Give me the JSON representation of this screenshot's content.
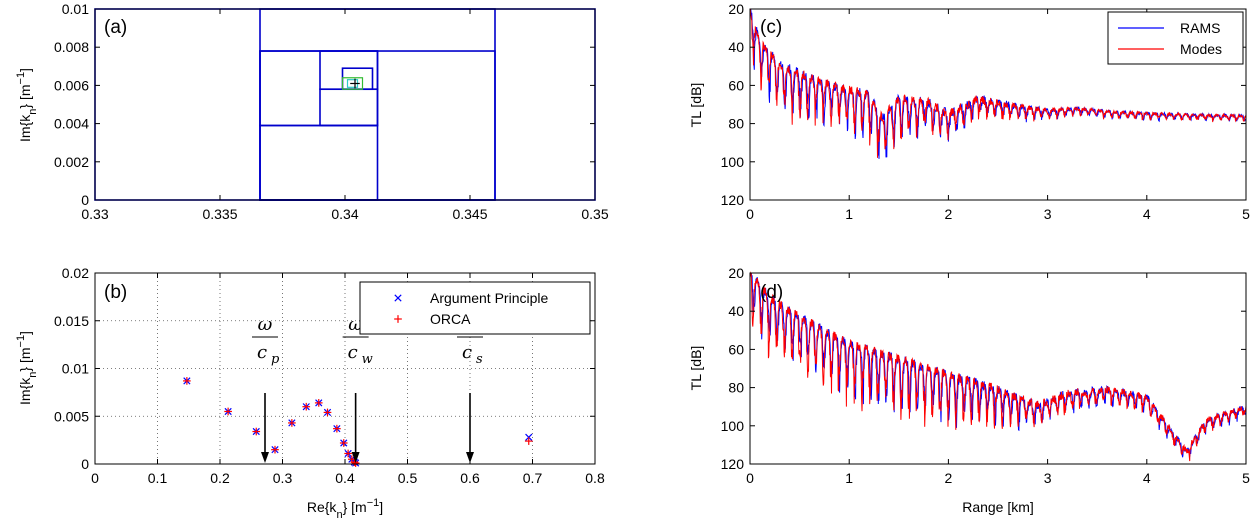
{
  "chart_data": [
    {
      "id": "a",
      "type": "scatter",
      "panel_label": "(a)",
      "xlabel": "",
      "ylabel": "Im{k_n} [m^-1]",
      "xlim": [
        0.33,
        0.35
      ],
      "ylim": [
        0,
        0.01
      ],
      "xticks": [
        "0.33",
        "0.335",
        "0.34",
        "0.345",
        "0.35"
      ],
      "yticks": [
        "0",
        "0.002",
        "0.004",
        "0.006",
        "0.008",
        "0.01"
      ],
      "grid": false,
      "box_color": "#0000cc",
      "rectangles": [
        {
          "x0": 0.33,
          "x1": 0.35,
          "y0": 0.0,
          "y1": 0.01
        },
        {
          "x0": 0.3366,
          "x1": 0.346,
          "y0": 0.0,
          "y1": 0.01
        },
        {
          "x0": 0.3366,
          "x1": 0.346,
          "y0": 0.0,
          "y1": 0.0078
        },
        {
          "x0": 0.3366,
          "x1": 0.3413,
          "y0": 0.0,
          "y1": 0.0039
        },
        {
          "x0": 0.3366,
          "x1": 0.3413,
          "y0": 0.0039,
          "y1": 0.0078
        },
        {
          "x0": 0.339,
          "x1": 0.3413,
          "y0": 0.0058,
          "y1": 0.0078
        },
        {
          "x0": 0.339,
          "x1": 0.3413,
          "y0": 0.0039,
          "y1": 0.0058
        },
        {
          "x0": 0.3399,
          "x1": 0.3411,
          "y0": 0.0058,
          "y1": 0.0069
        }
      ],
      "small_boxes": [
        {
          "x0": 0.3399,
          "x1": 0.3407,
          "y0": 0.0058,
          "y1": 0.0064,
          "color": "#33bb33"
        },
        {
          "x0": 0.3401,
          "x1": 0.3405,
          "y0": 0.0059,
          "y1": 0.0063,
          "color": "#2ec9c9"
        }
      ],
      "marker": {
        "x": 0.3404,
        "y": 0.0061,
        "symbol": "+",
        "color": "#000000"
      }
    },
    {
      "id": "b",
      "type": "scatter",
      "panel_label": "(b)",
      "xlabel": "Re{k_n} [m^-1]",
      "ylabel": "Im{k_n} [m^-1]",
      "xlim": [
        0,
        0.8
      ],
      "ylim": [
        0,
        0.02
      ],
      "xticks": [
        "0",
        "0.1",
        "0.2",
        "0.3",
        "0.4",
        "0.5",
        "0.6",
        "0.7",
        "0.8"
      ],
      "yticks": [
        "0",
        "0.005",
        "0.01",
        "0.015",
        "0.02"
      ],
      "grid": true,
      "legend": {
        "position": "top-right",
        "entries": [
          {
            "name": "Argument Principle",
            "symbol": "x",
            "color": "#0000ff"
          },
          {
            "name": "ORCA",
            "symbol": "+",
            "color": "#ff0000"
          }
        ]
      },
      "series": [
        {
          "name": "Argument Principle",
          "symbol": "x",
          "color": "#0000ff",
          "points": [
            [
              0.147,
              0.0087
            ],
            [
              0.213,
              0.0055
            ],
            [
              0.258,
              0.0034
            ],
            [
              0.288,
              0.0015
            ],
            [
              0.315,
              0.0043
            ],
            [
              0.338,
              0.006
            ],
            [
              0.358,
              0.0064
            ],
            [
              0.372,
              0.0054
            ],
            [
              0.387,
              0.0037
            ],
            [
              0.398,
              0.0022
            ],
            [
              0.405,
              0.0011
            ],
            [
              0.411,
              0.0005
            ],
            [
              0.415,
              0.0002
            ],
            [
              0.417,
              0.0001
            ],
            [
              0.694,
              0.0028
            ]
          ]
        },
        {
          "name": "ORCA",
          "symbol": "+",
          "color": "#ff0000",
          "points": [
            [
              0.147,
              0.0087
            ],
            [
              0.213,
              0.0055
            ],
            [
              0.258,
              0.0034
            ],
            [
              0.288,
              0.0015
            ],
            [
              0.315,
              0.0043
            ],
            [
              0.338,
              0.006
            ],
            [
              0.358,
              0.0064
            ],
            [
              0.372,
              0.0054
            ],
            [
              0.387,
              0.0037
            ],
            [
              0.398,
              0.0022
            ],
            [
              0.405,
              0.0011
            ],
            [
              0.411,
              0.0005
            ],
            [
              0.415,
              0.0002
            ],
            [
              0.417,
              0.0001
            ],
            [
              0.694,
              0.0024
            ]
          ]
        }
      ],
      "annotations": [
        {
          "numerator": "ω",
          "denominator": "c",
          "subscript": "p",
          "x": 0.272
        },
        {
          "numerator": "ω",
          "denominator": "c",
          "subscript": "w",
          "x": 0.417
        },
        {
          "numerator": "ω",
          "denominator": "c",
          "subscript": "s",
          "x": 0.6
        }
      ]
    },
    {
      "id": "c",
      "type": "line",
      "panel_label": "(c)",
      "xlabel": "",
      "ylabel": "TL [dB]",
      "xlim": [
        0,
        5
      ],
      "ylim": [
        20,
        120
      ],
      "y_reversed": true,
      "xticks": [
        "0",
        "1",
        "2",
        "3",
        "4",
        "5"
      ],
      "yticks": [
        "20",
        "40",
        "60",
        "80",
        "100",
        "120"
      ],
      "grid": false,
      "legend": {
        "position": "top-right",
        "entries": [
          {
            "name": "RAMS",
            "color": "#0000ff"
          },
          {
            "name": "Modes",
            "color": "#ff0000"
          }
        ]
      },
      "series": [
        {
          "name": "RAMS",
          "color": "#0000ff",
          "trend": [
            [
              0,
              22
            ],
            [
              0.1,
              40
            ],
            [
              0.3,
              52
            ],
            [
              0.6,
              59
            ],
            [
              0.9,
              64
            ],
            [
              1.2,
              68
            ],
            [
              1.33,
              80
            ],
            [
              1.5,
              70
            ],
            [
              1.8,
              72
            ],
            [
              2.0,
              78
            ],
            [
              2.3,
              70
            ],
            [
              2.6,
              73
            ],
            [
              3.0,
              76
            ],
            [
              3.3,
              75
            ],
            [
              3.7,
              77
            ],
            [
              4.2,
              78
            ],
            [
              5,
              79
            ]
          ],
          "null_depth": [
            [
              0,
              18
            ],
            [
              0.4,
              20
            ],
            [
              0.9,
              15
            ],
            [
              1.33,
              20
            ],
            [
              2.0,
              10
            ],
            [
              2.6,
              6
            ],
            [
              3.2,
              3
            ],
            [
              5,
              2
            ]
          ]
        },
        {
          "name": "Modes",
          "color": "#ff0000",
          "trend": [
            [
              0,
              22
            ],
            [
              0.1,
              40
            ],
            [
              0.3,
              52
            ],
            [
              0.6,
              59
            ],
            [
              0.9,
              64
            ],
            [
              1.2,
              68
            ],
            [
              1.33,
              80
            ],
            [
              1.5,
              70
            ],
            [
              1.8,
              72
            ],
            [
              2.0,
              78
            ],
            [
              2.3,
              70
            ],
            [
              2.6,
              73
            ],
            [
              3.0,
              76
            ],
            [
              3.3,
              75
            ],
            [
              3.7,
              77
            ],
            [
              4.2,
              78
            ],
            [
              5,
              79
            ]
          ],
          "null_depth": [
            [
              0,
              18
            ],
            [
              0.4,
              20
            ],
            [
              0.9,
              15
            ],
            [
              1.33,
              20
            ],
            [
              2.0,
              10
            ],
            [
              2.6,
              6
            ],
            [
              3.2,
              3
            ],
            [
              5,
              2
            ]
          ]
        }
      ]
    },
    {
      "id": "d",
      "type": "line",
      "panel_label": "(d)",
      "xlabel": "Range [km]",
      "ylabel": "TL [dB]",
      "xlim": [
        0,
        5
      ],
      "ylim": [
        20,
        120
      ],
      "y_reversed": true,
      "xticks": [
        "0",
        "1",
        "2",
        "3",
        "4",
        "5"
      ],
      "yticks": [
        "20",
        "40",
        "60",
        "80",
        "100",
        "120"
      ],
      "grid": false,
      "series": [
        {
          "name": "RAMS",
          "color": "#0000ff",
          "trend": [
            [
              0,
              22
            ],
            [
              0.2,
              36
            ],
            [
              0.5,
              46
            ],
            [
              1.0,
              60
            ],
            [
              1.5,
              68
            ],
            [
              2.0,
              76
            ],
            [
              2.5,
              84
            ],
            [
              2.9,
              92
            ],
            [
              3.2,
              86
            ],
            [
              3.6,
              84
            ],
            [
              4.0,
              88
            ],
            [
              4.4,
              116
            ],
            [
              4.6,
              100
            ],
            [
              5,
              93
            ]
          ],
          "null_depth": [
            [
              0,
              20
            ],
            [
              1,
              22
            ],
            [
              2,
              20
            ],
            [
              2.5,
              14
            ],
            [
              3,
              8
            ],
            [
              5,
              4
            ]
          ]
        },
        {
          "name": "Modes",
          "color": "#ff0000",
          "trend": [
            [
              0,
              22
            ],
            [
              0.2,
              36
            ],
            [
              0.5,
              46
            ],
            [
              1.0,
              60
            ],
            [
              1.5,
              68
            ],
            [
              2.0,
              76
            ],
            [
              2.5,
              84
            ],
            [
              2.9,
              92
            ],
            [
              3.2,
              86
            ],
            [
              3.6,
              84
            ],
            [
              4.0,
              88
            ],
            [
              4.4,
              116
            ],
            [
              4.6,
              100
            ],
            [
              5,
              93
            ]
          ],
          "null_depth": [
            [
              0,
              24
            ],
            [
              1,
              24
            ],
            [
              2,
              22
            ],
            [
              2.5,
              14
            ],
            [
              3,
              8
            ],
            [
              5,
              4
            ]
          ]
        }
      ]
    }
  ]
}
